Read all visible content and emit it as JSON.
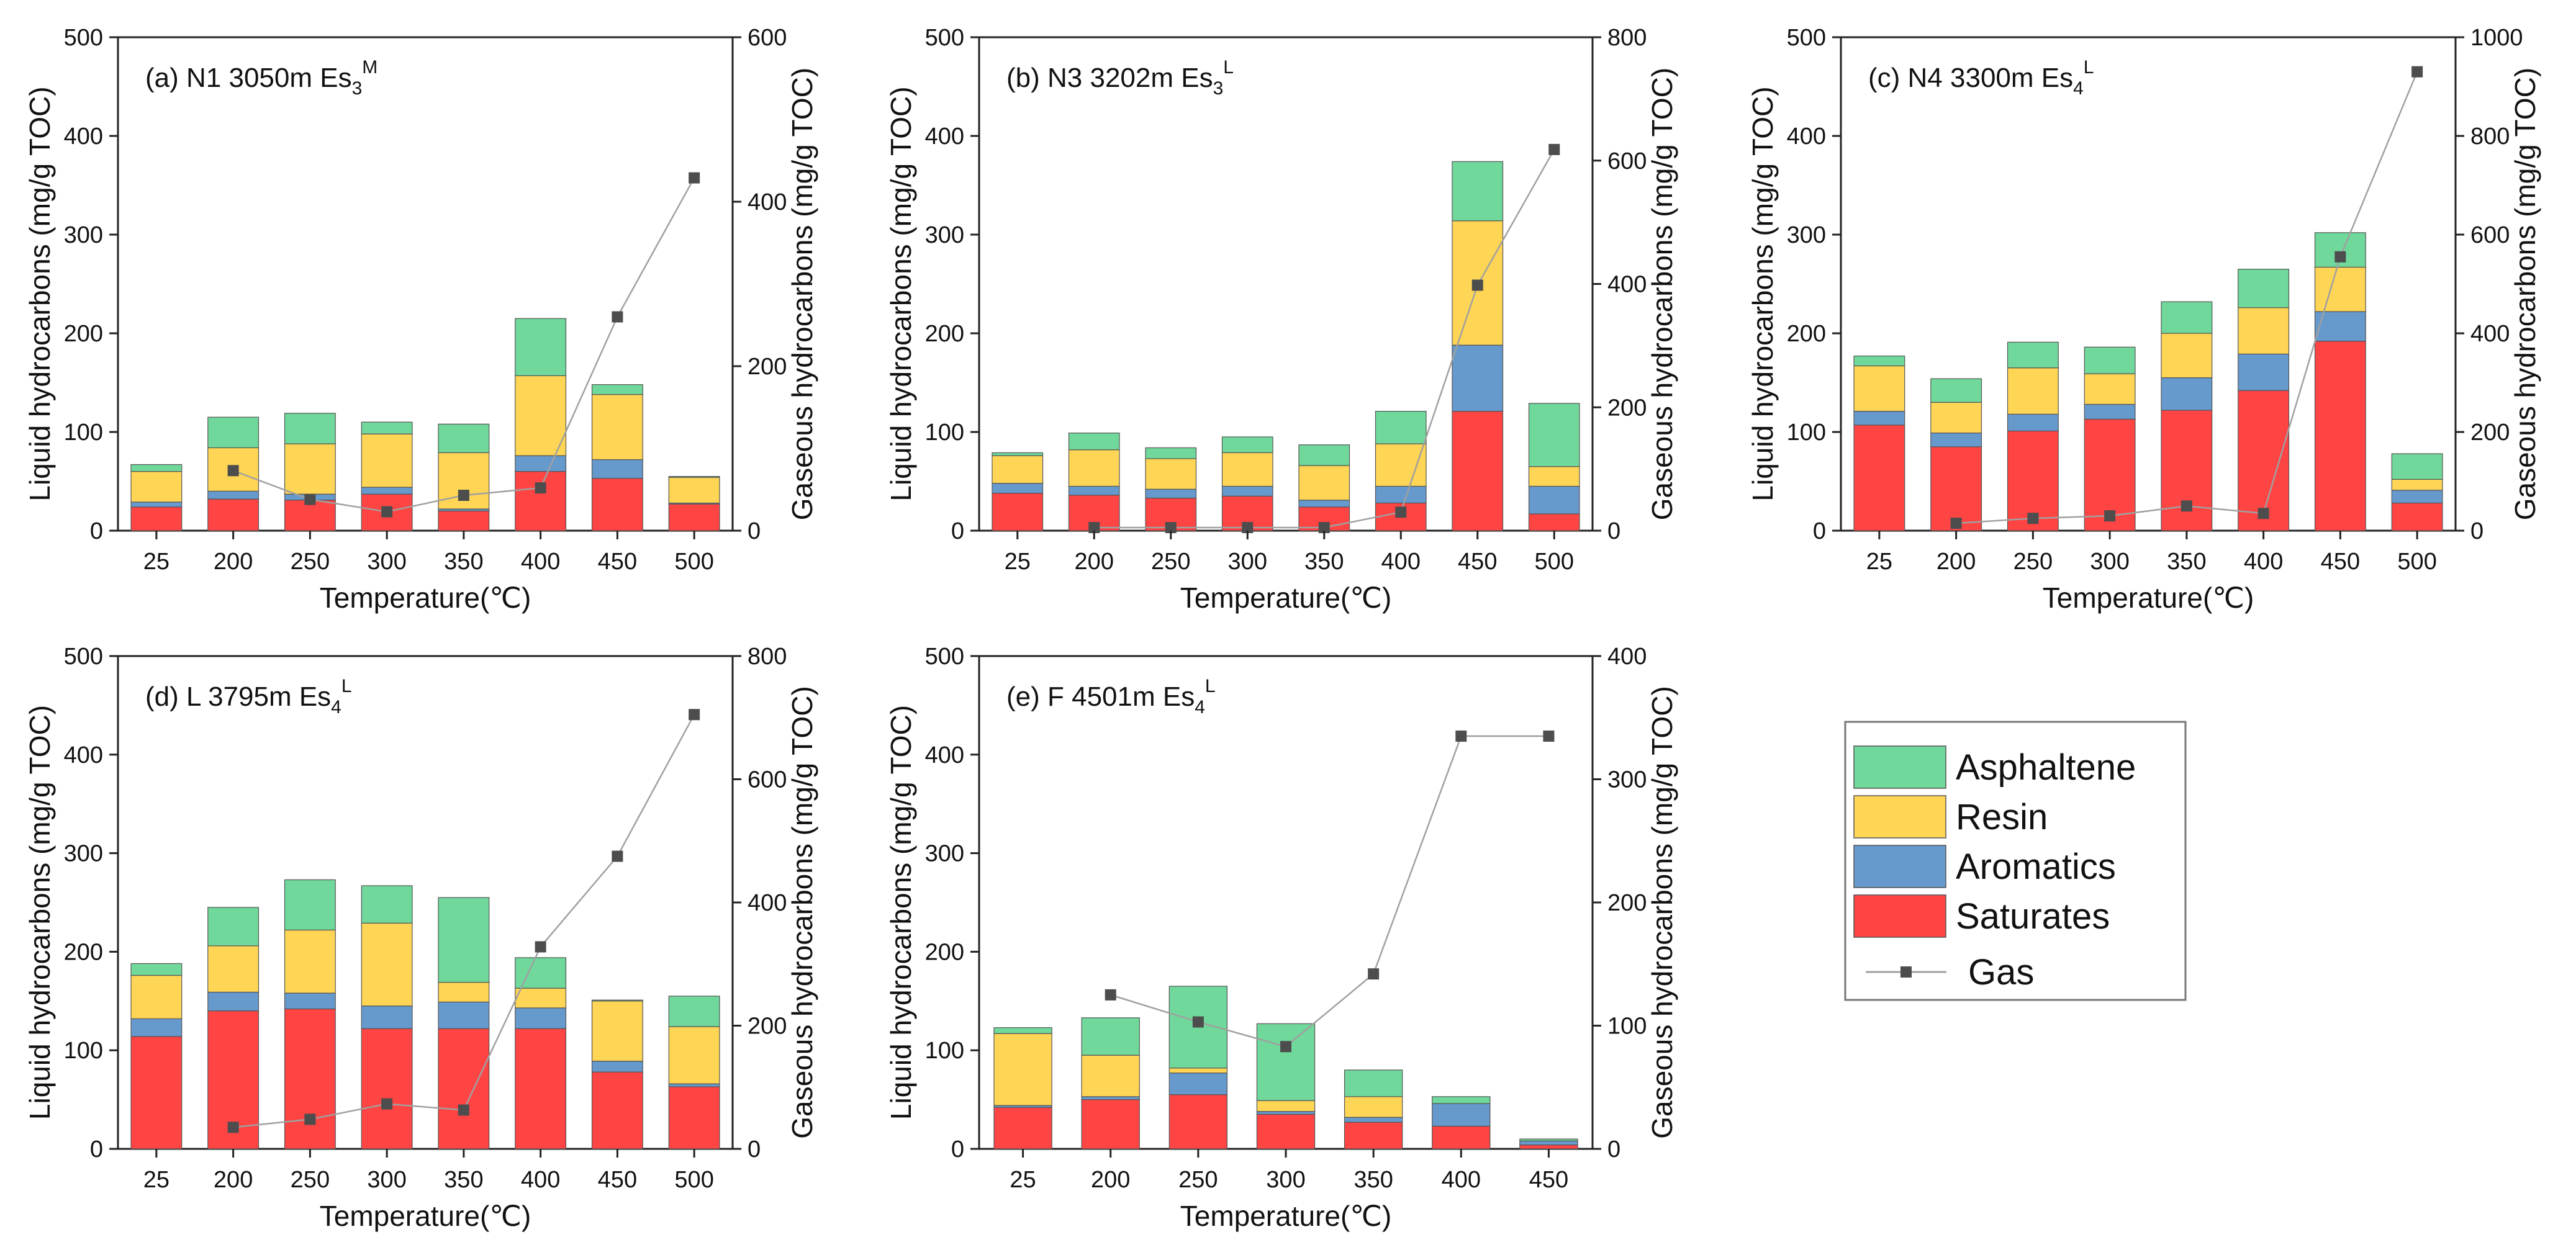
{
  "colors": {
    "Saturates": "#ff4444",
    "Aromatics": "#6699cc",
    "Resin": "#ffd555",
    "Asphaltene": "#6fd89a",
    "Gas": "#4d4d4d",
    "gas_line": "#a0a0a0"
  },
  "legend": {
    "items": [
      {
        "key": "Asphaltene",
        "label": "Asphaltene",
        "kind": "box"
      },
      {
        "key": "Resin",
        "label": "Resin",
        "kind": "box"
      },
      {
        "key": "Aromatics",
        "label": "Aromatics",
        "kind": "box"
      },
      {
        "key": "Saturates",
        "label": "Saturates",
        "kind": "box"
      },
      {
        "key": "Gas",
        "label": "Gas",
        "kind": "line"
      }
    ],
    "placement": "right-bottom"
  },
  "chart_data": [
    {
      "type": "bar",
      "stacked": true,
      "title": {
        "main": "(a) N1  3050m  Es",
        "sub": "3",
        "sup": "M"
      },
      "xlabel": "Temperature(℃)",
      "ylabel": "Liquid hydrocarbons (mg/g TOC)",
      "y2label": "Gaseous hydrocarbons (mg/g TOC)",
      "categories": [
        "25",
        "200",
        "250",
        "300",
        "350",
        "400",
        "450",
        "500"
      ],
      "ylim": [
        0,
        500
      ],
      "yticks": [
        0,
        100,
        200,
        300,
        400,
        500
      ],
      "y2lim": [
        0,
        600
      ],
      "y2ticks": [
        0,
        200,
        400,
        600
      ],
      "series": [
        {
          "name": "Saturates",
          "values": [
            24,
            32,
            31,
            37,
            20,
            60,
            53,
            27
          ]
        },
        {
          "name": "Aromatics",
          "values": [
            5,
            8,
            6,
            7,
            2,
            16,
            19,
            1
          ]
        },
        {
          "name": "Resin",
          "values": [
            31,
            44,
            51,
            54,
            57,
            81,
            66,
            26
          ]
        },
        {
          "name": "Asphaltene",
          "values": [
            7,
            31,
            31,
            12,
            29,
            58,
            10,
            1
          ]
        }
      ],
      "gas": {
        "name": "Gas",
        "values": [
          null,
          73,
          38,
          23,
          43,
          52,
          260,
          429
        ]
      }
    },
    {
      "type": "bar",
      "stacked": true,
      "title": {
        "main": "(b) N3  3202m  Es",
        "sub": "3",
        "sup": "L"
      },
      "xlabel": "Temperature(℃)",
      "ylabel": "Liquid hydrocarbons (mg/g TOC)",
      "y2label": "Gaseous hydrocarbons (mg/g TOC)",
      "categories": [
        "25",
        "200",
        "250",
        "300",
        "350",
        "400",
        "450",
        "500"
      ],
      "ylim": [
        0,
        500
      ],
      "yticks": [
        0,
        100,
        200,
        300,
        400,
        500
      ],
      "y2lim": [
        0,
        800
      ],
      "y2ticks": [
        0,
        200,
        400,
        600,
        800
      ],
      "series": [
        {
          "name": "Saturates",
          "values": [
            38,
            36,
            33,
            35,
            24,
            28,
            121,
            17
          ]
        },
        {
          "name": "Aromatics",
          "values": [
            10,
            9,
            9,
            10,
            7,
            17,
            67,
            28
          ]
        },
        {
          "name": "Resin",
          "values": [
            28,
            37,
            31,
            34,
            35,
            43,
            126,
            20
          ]
        },
        {
          "name": "Asphaltene",
          "values": [
            3,
            17,
            11,
            16,
            21,
            33,
            60,
            64
          ]
        }
      ],
      "gas": {
        "name": "Gas",
        "values": [
          null,
          5,
          5,
          5,
          5,
          30,
          398,
          618
        ]
      }
    },
    {
      "type": "bar",
      "stacked": true,
      "title": {
        "main": "(c) N4  3300m  Es",
        "sub": "4",
        "sup": "L"
      },
      "xlabel": "Temperature(℃)",
      "ylabel": "Liquid hydrocarbons (mg/g TOC)",
      "y2label": "Gaseous hydrocarbons (mg/g TOC)",
      "categories": [
        "25",
        "200",
        "250",
        "300",
        "350",
        "400",
        "450",
        "500"
      ],
      "ylim": [
        0,
        500
      ],
      "yticks": [
        0,
        100,
        200,
        300,
        400,
        500
      ],
      "y2lim": [
        0,
        1000
      ],
      "y2ticks": [
        0,
        200,
        400,
        600,
        800,
        1000
      ],
      "series": [
        {
          "name": "Saturates",
          "values": [
            107,
            85,
            101,
            113,
            122,
            142,
            192,
            28
          ]
        },
        {
          "name": "Aromatics",
          "values": [
            14,
            14,
            17,
            15,
            33,
            37,
            30,
            13
          ]
        },
        {
          "name": "Resin",
          "values": [
            46,
            31,
            47,
            31,
            45,
            47,
            45,
            11
          ]
        },
        {
          "name": "Asphaltene",
          "values": [
            10,
            24,
            26,
            27,
            32,
            39,
            35,
            26
          ]
        }
      ],
      "gas": {
        "name": "Gas",
        "values": [
          null,
          15,
          25,
          30,
          50,
          35,
          555,
          930
        ]
      }
    },
    {
      "type": "bar",
      "stacked": true,
      "title": {
        "main": "(d) L  3795m  Es",
        "sub": "4",
        "sup": "L"
      },
      "xlabel": "Temperature(℃)",
      "ylabel": "Liquid hydrocarbons (mg/g TOC)",
      "y2label": "Gaseous hydrocarbons (mg/g TOC)",
      "categories": [
        "25",
        "200",
        "250",
        "300",
        "350",
        "400",
        "450",
        "500"
      ],
      "ylim": [
        0,
        500
      ],
      "yticks": [
        0,
        100,
        200,
        300,
        400,
        500
      ],
      "y2lim": [
        0,
        800
      ],
      "y2ticks": [
        0,
        200,
        400,
        600,
        800
      ],
      "series": [
        {
          "name": "Saturates",
          "values": [
            114,
            140,
            142,
            122,
            122,
            122,
            78,
            63
          ]
        },
        {
          "name": "Aromatics",
          "values": [
            18,
            19,
            16,
            23,
            27,
            21,
            11,
            3
          ]
        },
        {
          "name": "Resin",
          "values": [
            44,
            47,
            64,
            84,
            20,
            20,
            61,
            58
          ]
        },
        {
          "name": "Asphaltene",
          "values": [
            12,
            39,
            51,
            38,
            86,
            31,
            1,
            31
          ]
        }
      ],
      "gas": {
        "name": "Gas",
        "values": [
          null,
          35,
          48,
          73,
          63,
          328,
          475,
          705
        ]
      }
    },
    {
      "type": "bar",
      "stacked": true,
      "title": {
        "main": "(e) F  4501m  Es",
        "sub": "4",
        "sup": "L"
      },
      "xlabel": "Temperature(℃)",
      "ylabel": "Liquid hydrocarbons (mg/g TOC)",
      "y2label": "Gaseous hydrocarbons (mg/g TOC)",
      "categories": [
        "25",
        "200",
        "250",
        "300",
        "350",
        "400",
        "450"
      ],
      "ylim": [
        0,
        500
      ],
      "yticks": [
        0,
        100,
        200,
        300,
        400,
        500
      ],
      "y2lim": [
        0,
        400
      ],
      "y2ticks": [
        0,
        100,
        200,
        300,
        400
      ],
      "series": [
        {
          "name": "Saturates",
          "values": [
            42,
            50,
            55,
            35,
            27,
            23,
            4
          ]
        },
        {
          "name": "Aromatics",
          "values": [
            2,
            3,
            22,
            3,
            5,
            23,
            4
          ]
        },
        {
          "name": "Resin",
          "values": [
            73,
            42,
            5,
            11,
            21,
            0,
            0
          ]
        },
        {
          "name": "Asphaltene",
          "values": [
            6,
            38,
            83,
            78,
            27,
            7,
            2
          ]
        }
      ],
      "gas": {
        "name": "Gas",
        "values": [
          null,
          125,
          103,
          83,
          142,
          335,
          335
        ]
      }
    }
  ]
}
